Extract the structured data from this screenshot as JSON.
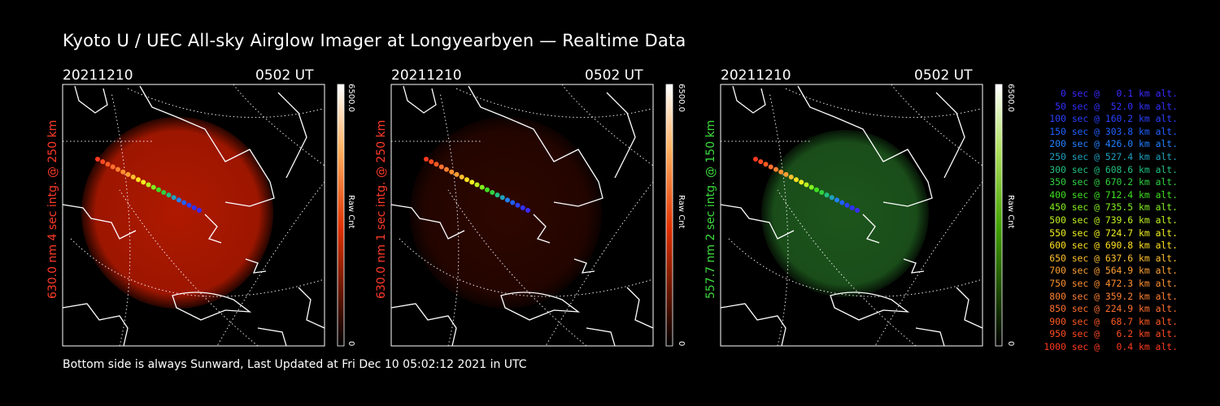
{
  "title": "Kyoto U / UEC All-sky Airglow Imager at Longyearbyen — Realtime Data",
  "footer": "Bottom side is always Sunward, Last Updated at Fri Dec 10 05:02:12 2021 in UTC",
  "panels": [
    {
      "date": "20211210",
      "time": "0502 UT",
      "side_label": "630.0 nm 4 sec intg. @ 250 km",
      "label_color": "#ff3a2a",
      "cb_max": "6500.0",
      "cb_min": "0",
      "cb_unit": "Raw Cnt",
      "glow": "#b81a00",
      "colormap": "red"
    },
    {
      "date": "20211210",
      "time": "0502 UT",
      "side_label": "630.0 nm 1 sec intg. @ 250 km",
      "label_color": "#ff3a2a",
      "cb_max": "6500.0",
      "cb_min": "0",
      "cb_unit": "Raw Cnt",
      "glow": "#3a0800",
      "colormap": "red"
    },
    {
      "date": "20211210",
      "time": "0502 UT",
      "side_label": "557.7 nm 2 sec intg. @ 150 km",
      "label_color": "#3cdc3c",
      "cb_max": "6500.0",
      "cb_min": "0",
      "cb_unit": "Raw Cnt",
      "glow": "#1e5a1e",
      "colormap": "green"
    }
  ],
  "legend": [
    {
      "text": "0 sec @   0.1 km alt.",
      "color": "#3a2aff"
    },
    {
      "text": "50 sec @  52.0 km alt.",
      "color": "#3030ff"
    },
    {
      "text": "100 sec @ 160.2 km alt.",
      "color": "#2a40ff"
    },
    {
      "text": "150 sec @ 303.8 km alt.",
      "color": "#2060ff"
    },
    {
      "text": "200 sec @ 426.0 km alt.",
      "color": "#2080ff"
    },
    {
      "text": "250 sec @ 527.4 km alt.",
      "color": "#20a0c0"
    },
    {
      "text": "300 sec @ 608.6 km alt.",
      "color": "#20c080"
    },
    {
      "text": "350 sec @ 670.2 km alt.",
      "color": "#30d040"
    },
    {
      "text": "400 sec @ 712.4 km alt.",
      "color": "#40e020"
    },
    {
      "text": "450 sec @ 735.5 km alt.",
      "color": "#80f020"
    },
    {
      "text": "500 sec @ 739.6 km alt.",
      "color": "#c0f020"
    },
    {
      "text": "550 sec @ 724.7 km alt.",
      "color": "#f0f020"
    },
    {
      "text": "600 sec @ 690.8 km alt.",
      "color": "#ffe020"
    },
    {
      "text": "650 sec @ 637.6 km alt.",
      "color": "#ffc030"
    },
    {
      "text": "700 sec @ 564.9 km alt.",
      "color": "#ffa030"
    },
    {
      "text": "750 sec @ 472.3 km alt.",
      "color": "#ff9030"
    },
    {
      "text": "800 sec @ 359.2 km alt.",
      "color": "#ff8030"
    },
    {
      "text": "850 sec @ 224.9 km alt.",
      "color": "#ff7030"
    },
    {
      "text": "900 sec @  68.7 km alt.",
      "color": "#ff5a20"
    },
    {
      "text": "950 sec @   6.2 km alt.",
      "color": "#ff4a20"
    },
    {
      "text": "1000 sec @   0.4 km alt.",
      "color": "#ff3a20"
    }
  ]
}
